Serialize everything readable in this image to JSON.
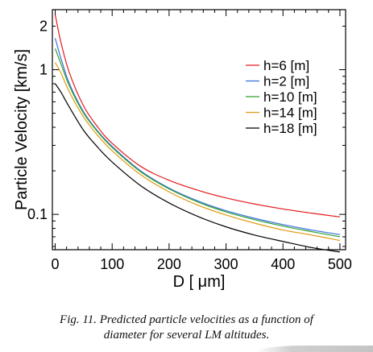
{
  "caption": {
    "line1": "Fig. 11.  Predicted particle velocities as a function of",
    "line2": "diameter for several LM altitudes."
  },
  "chart_data": {
    "type": "line",
    "title": "",
    "xlabel": "D [ μm]",
    "ylabel": "Particle Velocity [km/s]",
    "xlim": [
      -5,
      510
    ],
    "ylim": [
      0.057,
      2.6
    ],
    "yscale": "log",
    "x_ticks": [
      0,
      100,
      200,
      300,
      400,
      500
    ],
    "y_tick_labels": [
      {
        "value": 2,
        "label": "2"
      },
      {
        "value": 1,
        "label": "1"
      },
      {
        "value": 0.1,
        "label": "0.1"
      }
    ],
    "grid": false,
    "legend_position": "center-right",
    "series": [
      {
        "name": "h=6 [m]",
        "color": "#e41a1c",
        "x": [
          0,
          10,
          25,
          50,
          75,
          100,
          150,
          200,
          250,
          300,
          350,
          400,
          450,
          500
        ],
        "y": [
          2.4,
          1.55,
          0.95,
          0.56,
          0.4,
          0.31,
          0.215,
          0.172,
          0.147,
          0.13,
          0.118,
          0.109,
          0.102,
          0.096
        ]
      },
      {
        "name": "h=2 [m]",
        "color": "#3a6fe0",
        "x": [
          0,
          10,
          25,
          50,
          75,
          100,
          150,
          200,
          250,
          300,
          350,
          400,
          450,
          500
        ],
        "y": [
          1.65,
          1.2,
          0.8,
          0.51,
          0.375,
          0.295,
          0.2,
          0.152,
          0.124,
          0.106,
          0.094,
          0.085,
          0.078,
          0.0725
        ]
      },
      {
        "name": "h=10 [m]",
        "color": "#2ca02c",
        "x": [
          0,
          10,
          25,
          50,
          75,
          100,
          150,
          200,
          250,
          300,
          350,
          400,
          450,
          500
        ],
        "y": [
          1.4,
          1.1,
          0.77,
          0.5,
          0.37,
          0.29,
          0.197,
          0.15,
          0.122,
          0.104,
          0.092,
          0.083,
          0.076,
          0.07
        ]
      },
      {
        "name": "h=14 [m]",
        "color": "#e09a10",
        "x": [
          0,
          10,
          25,
          50,
          75,
          100,
          150,
          200,
          250,
          300,
          350,
          400,
          450,
          500
        ],
        "y": [
          1.12,
          0.95,
          0.7,
          0.47,
          0.35,
          0.275,
          0.188,
          0.143,
          0.116,
          0.099,
          0.087,
          0.078,
          0.072,
          0.066
        ]
      },
      {
        "name": "h=18 [m]",
        "color": "#000000",
        "x": [
          0,
          10,
          25,
          50,
          75,
          100,
          150,
          200,
          250,
          300,
          350,
          400,
          450,
          500
        ],
        "y": [
          0.8,
          0.7,
          0.55,
          0.38,
          0.29,
          0.23,
          0.158,
          0.12,
          0.097,
          0.082,
          0.072,
          0.065,
          0.059,
          0.055
        ]
      }
    ]
  }
}
